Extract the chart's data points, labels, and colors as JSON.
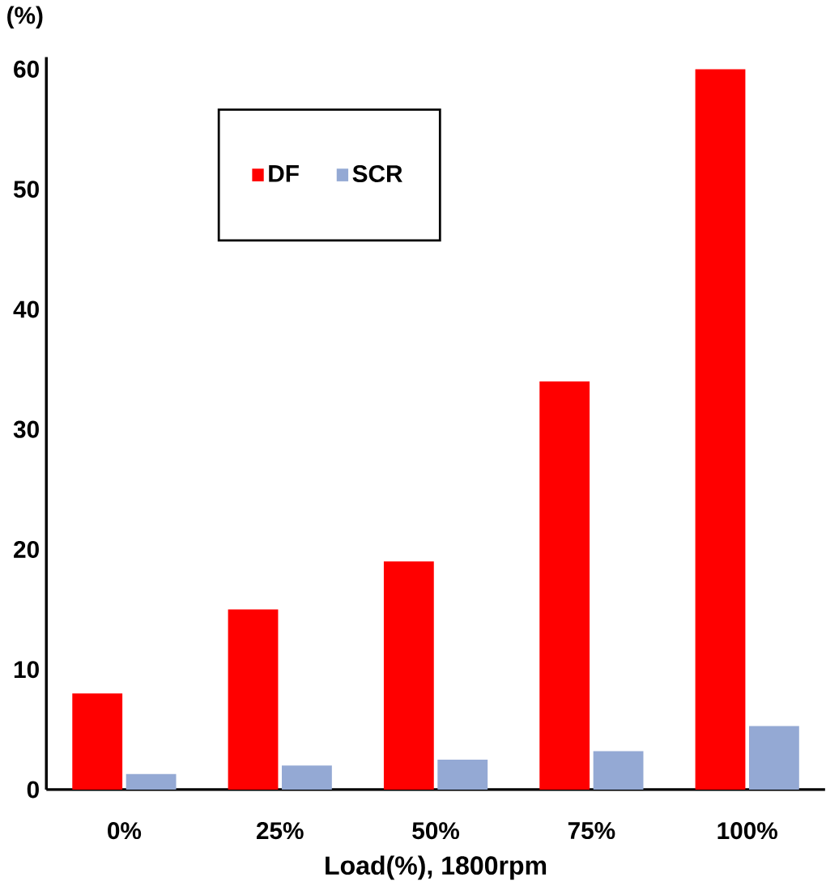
{
  "chart_data": {
    "type": "bar",
    "ylabel": "(%)",
    "xlabel": "Load(%), 1800rpm",
    "categories": [
      "0%",
      "25%",
      "50%",
      "75%",
      "100%"
    ],
    "series": [
      {
        "name": "DF",
        "color": "#ff0000",
        "values": [
          8,
          15,
          19,
          34,
          60
        ]
      },
      {
        "name": "SCR",
        "color": "#94a9d4",
        "values": [
          1.3,
          2,
          2.5,
          3.2,
          5.3
        ]
      }
    ],
    "ylim": [
      0,
      61
    ],
    "yticks": [
      0,
      10,
      20,
      30,
      40,
      50,
      60
    ],
    "grid": false,
    "legend": "top left"
  }
}
